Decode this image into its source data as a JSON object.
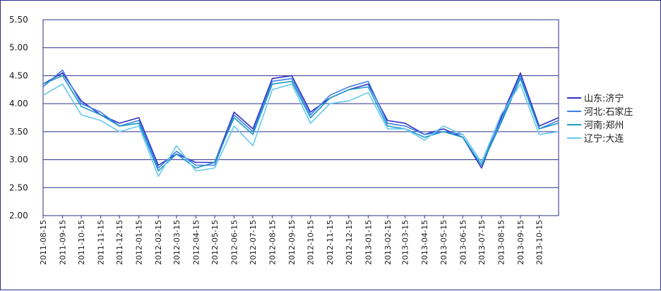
{
  "chart_data": {
    "type": "line",
    "ylim": [
      2.0,
      5.5
    ],
    "yticks": [
      "5.50",
      "5.00",
      "4.50",
      "4.00",
      "3.50",
      "3.00",
      "2.50",
      "2.00"
    ],
    "xticks": [
      "2011-08-15",
      "2011-09-15",
      "2011-10-15",
      "2011-11-15",
      "2011-12-15",
      "2012-01-15",
      "2012-02-15",
      "2012-03-15",
      "2012-04-15",
      "2012-05-15",
      "2012-06-15",
      "2012-07-15",
      "2012-08-15",
      "2012-09-15",
      "2012-10-15",
      "2012-11-15",
      "2012-12-15",
      "2013-01-15",
      "2013-02-15",
      "2013-03-15",
      "2013-04-15",
      "2013-05-15",
      "2013-06-15",
      "2013-07-15",
      "2013-08-15",
      "2013-09-15",
      "2013-10-15"
    ],
    "grid": true,
    "legend_position": "right",
    "x": [
      "2011-08-15",
      "2011-09-15",
      "2011-10-15",
      "2011-11-15",
      "2011-12-15",
      "2012-01-15",
      "2012-02-15",
      "2012-03-15",
      "2012-04-15",
      "2012-05-15",
      "2012-06-15",
      "2012-07-15",
      "2012-08-15",
      "2012-09-15",
      "2012-10-15",
      "2012-11-15",
      "2012-12-15",
      "2013-01-15",
      "2013-02-15",
      "2013-03-15",
      "2013-04-15",
      "2013-05-15",
      "2013-06-15",
      "2013-07-15",
      "2013-08-15",
      "2013-09-15",
      "2013-10-15",
      "2013-11-15"
    ],
    "series": [
      {
        "name": "山东:济宁",
        "color": "#3030c8",
        "values": [
          4.35,
          4.55,
          4.05,
          3.8,
          3.65,
          3.75,
          2.9,
          3.1,
          2.95,
          2.95,
          3.85,
          3.55,
          4.45,
          4.5,
          3.85,
          4.1,
          4.25,
          4.35,
          3.7,
          3.65,
          3.45,
          3.55,
          3.4,
          2.85,
          3.75,
          4.55,
          3.6,
          3.75
        ]
      },
      {
        "name": "河北:石家庄",
        "color": "#3f7fe6",
        "values": [
          4.3,
          4.6,
          4.0,
          3.85,
          3.6,
          3.7,
          2.85,
          3.15,
          2.9,
          2.9,
          3.8,
          3.5,
          4.4,
          4.45,
          3.8,
          4.15,
          4.3,
          4.4,
          3.65,
          3.6,
          3.45,
          3.5,
          3.45,
          2.95,
          3.7,
          4.5,
          3.55,
          3.7
        ]
      },
      {
        "name": "河南:郑州",
        "color": "#1a98c4",
        "values": [
          4.35,
          4.5,
          3.95,
          3.8,
          3.6,
          3.65,
          2.8,
          3.1,
          2.85,
          2.95,
          3.75,
          3.45,
          4.35,
          4.4,
          3.75,
          4.1,
          4.25,
          4.3,
          3.6,
          3.55,
          3.4,
          3.5,
          3.4,
          2.9,
          3.65,
          4.45,
          3.55,
          3.65
        ]
      },
      {
        "name": "辽宁:大连",
        "color": "#66c8f0",
        "values": [
          4.15,
          4.35,
          3.8,
          3.7,
          3.5,
          3.6,
          2.7,
          3.25,
          2.8,
          2.85,
          3.6,
          3.25,
          4.25,
          4.35,
          3.65,
          4.0,
          4.05,
          4.2,
          3.55,
          3.55,
          3.35,
          3.6,
          3.45,
          2.95,
          3.8,
          4.35,
          3.45,
          3.5
        ]
      }
    ]
  }
}
